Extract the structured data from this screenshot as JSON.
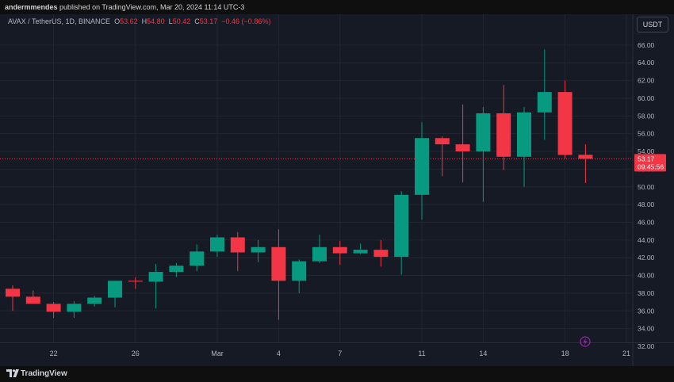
{
  "header": {
    "author": "andermmendes",
    "published_text": "published on TradingView.com, Mar 20, 2024 11:14 UTC-3"
  },
  "legend": {
    "symbol": "AVAX / TetherUS, 1D, BINANCE",
    "open_label": "O",
    "open": "53.62",
    "high_label": "H",
    "high": "54.80",
    "low_label": "L",
    "low": "50.42",
    "close_label": "C",
    "close": "53.17",
    "change": "−0.46 (−0.86%)"
  },
  "currency_button": "USDT",
  "price_tag": {
    "price": "53.17",
    "countdown": "09:45:56"
  },
  "footer": {
    "brand": "TradingView"
  },
  "colors": {
    "up": "#089981",
    "down": "#f23645",
    "grid": "#232632",
    "axis_text": "#b2b5be",
    "background": "#161a25"
  },
  "chart_data": {
    "type": "candlestick",
    "title": "AVAX / TetherUS, 1D, BINANCE",
    "ylim": [
      32,
      67
    ],
    "yticks": [
      "32.00",
      "34.00",
      "36.00",
      "38.00",
      "40.00",
      "42.00",
      "44.00",
      "46.00",
      "48.00",
      "50.00",
      "52.00",
      "54.00",
      "56.00",
      "58.00",
      "60.00",
      "62.00",
      "64.00",
      "66.00"
    ],
    "xticks": [
      "22",
      "26",
      "Mar",
      "4",
      "7",
      "11",
      "14",
      "18",
      "21"
    ],
    "xtick_dates": [
      "2024-02-22",
      "2024-02-26",
      "2024-03-01",
      "2024-03-04",
      "2024-03-07",
      "2024-03-11",
      "2024-03-14",
      "2024-03-18",
      "2024-03-21"
    ],
    "last_price": 53.17,
    "candles": [
      {
        "date": "2024-02-20",
        "open": 38.5,
        "high": 38.9,
        "low": 36.0,
        "close": 37.6
      },
      {
        "date": "2024-02-21",
        "open": 37.6,
        "high": 38.3,
        "low": 36.8,
        "close": 36.8
      },
      {
        "date": "2024-02-22",
        "open": 36.8,
        "high": 37.0,
        "low": 35.2,
        "close": 35.9
      },
      {
        "date": "2024-02-23",
        "open": 35.9,
        "high": 37.1,
        "low": 35.2,
        "close": 36.8
      },
      {
        "date": "2024-02-24",
        "open": 36.8,
        "high": 37.7,
        "low": 36.5,
        "close": 37.5
      },
      {
        "date": "2024-02-25",
        "open": 37.5,
        "high": 39.4,
        "low": 36.4,
        "close": 39.4
      },
      {
        "date": "2024-02-26",
        "open": 39.4,
        "high": 39.8,
        "low": 38.5,
        "close": 39.3
      },
      {
        "date": "2024-02-27",
        "open": 39.3,
        "high": 41.3,
        "low": 36.3,
        "close": 40.4
      },
      {
        "date": "2024-02-28",
        "open": 40.4,
        "high": 41.4,
        "low": 39.8,
        "close": 41.1
      },
      {
        "date": "2024-02-29",
        "open": 41.1,
        "high": 43.5,
        "low": 40.5,
        "close": 42.7
      },
      {
        "date": "2024-03-01",
        "open": 42.7,
        "high": 44.6,
        "low": 42.1,
        "close": 44.3
      },
      {
        "date": "2024-03-02",
        "open": 44.3,
        "high": 44.9,
        "low": 40.5,
        "close": 42.6
      },
      {
        "date": "2024-03-03",
        "open": 42.6,
        "high": 44.0,
        "low": 41.5,
        "close": 43.2
      },
      {
        "date": "2024-03-04",
        "open": 43.2,
        "high": 45.2,
        "low": 35.0,
        "close": 39.4
      },
      {
        "date": "2024-03-05",
        "open": 39.4,
        "high": 41.8,
        "low": 38.0,
        "close": 41.6
      },
      {
        "date": "2024-03-06",
        "open": 41.6,
        "high": 44.6,
        "low": 41.4,
        "close": 43.2
      },
      {
        "date": "2024-03-07",
        "open": 43.2,
        "high": 43.9,
        "low": 41.2,
        "close": 42.5
      },
      {
        "date": "2024-03-08",
        "open": 42.5,
        "high": 43.6,
        "low": 42.4,
        "close": 42.9
      },
      {
        "date": "2024-03-09",
        "open": 42.9,
        "high": 44.0,
        "low": 41.0,
        "close": 42.1
      },
      {
        "date": "2024-03-10",
        "open": 42.1,
        "high": 49.5,
        "low": 40.1,
        "close": 49.1
      },
      {
        "date": "2024-03-11",
        "open": 49.1,
        "high": 57.3,
        "low": 46.3,
        "close": 55.5
      },
      {
        "date": "2024-03-12",
        "open": 55.5,
        "high": 55.7,
        "low": 51.2,
        "close": 54.8
      },
      {
        "date": "2024-03-13",
        "open": 54.8,
        "high": 59.3,
        "low": 50.5,
        "close": 54.0
      },
      {
        "date": "2024-03-14",
        "open": 54.0,
        "high": 59.0,
        "low": 48.3,
        "close": 58.3
      },
      {
        "date": "2024-03-15",
        "open": 58.3,
        "high": 61.5,
        "low": 51.9,
        "close": 53.4
      },
      {
        "date": "2024-03-16",
        "open": 53.4,
        "high": 59.0,
        "low": 50.0,
        "close": 58.4
      },
      {
        "date": "2024-03-17",
        "open": 58.4,
        "high": 65.5,
        "low": 55.3,
        "close": 60.7
      },
      {
        "date": "2024-03-18",
        "open": 60.7,
        "high": 62.0,
        "low": 53.2,
        "close": 53.6
      },
      {
        "date": "2024-03-19",
        "open": 53.62,
        "high": 54.8,
        "low": 50.42,
        "close": 53.17
      }
    ]
  }
}
